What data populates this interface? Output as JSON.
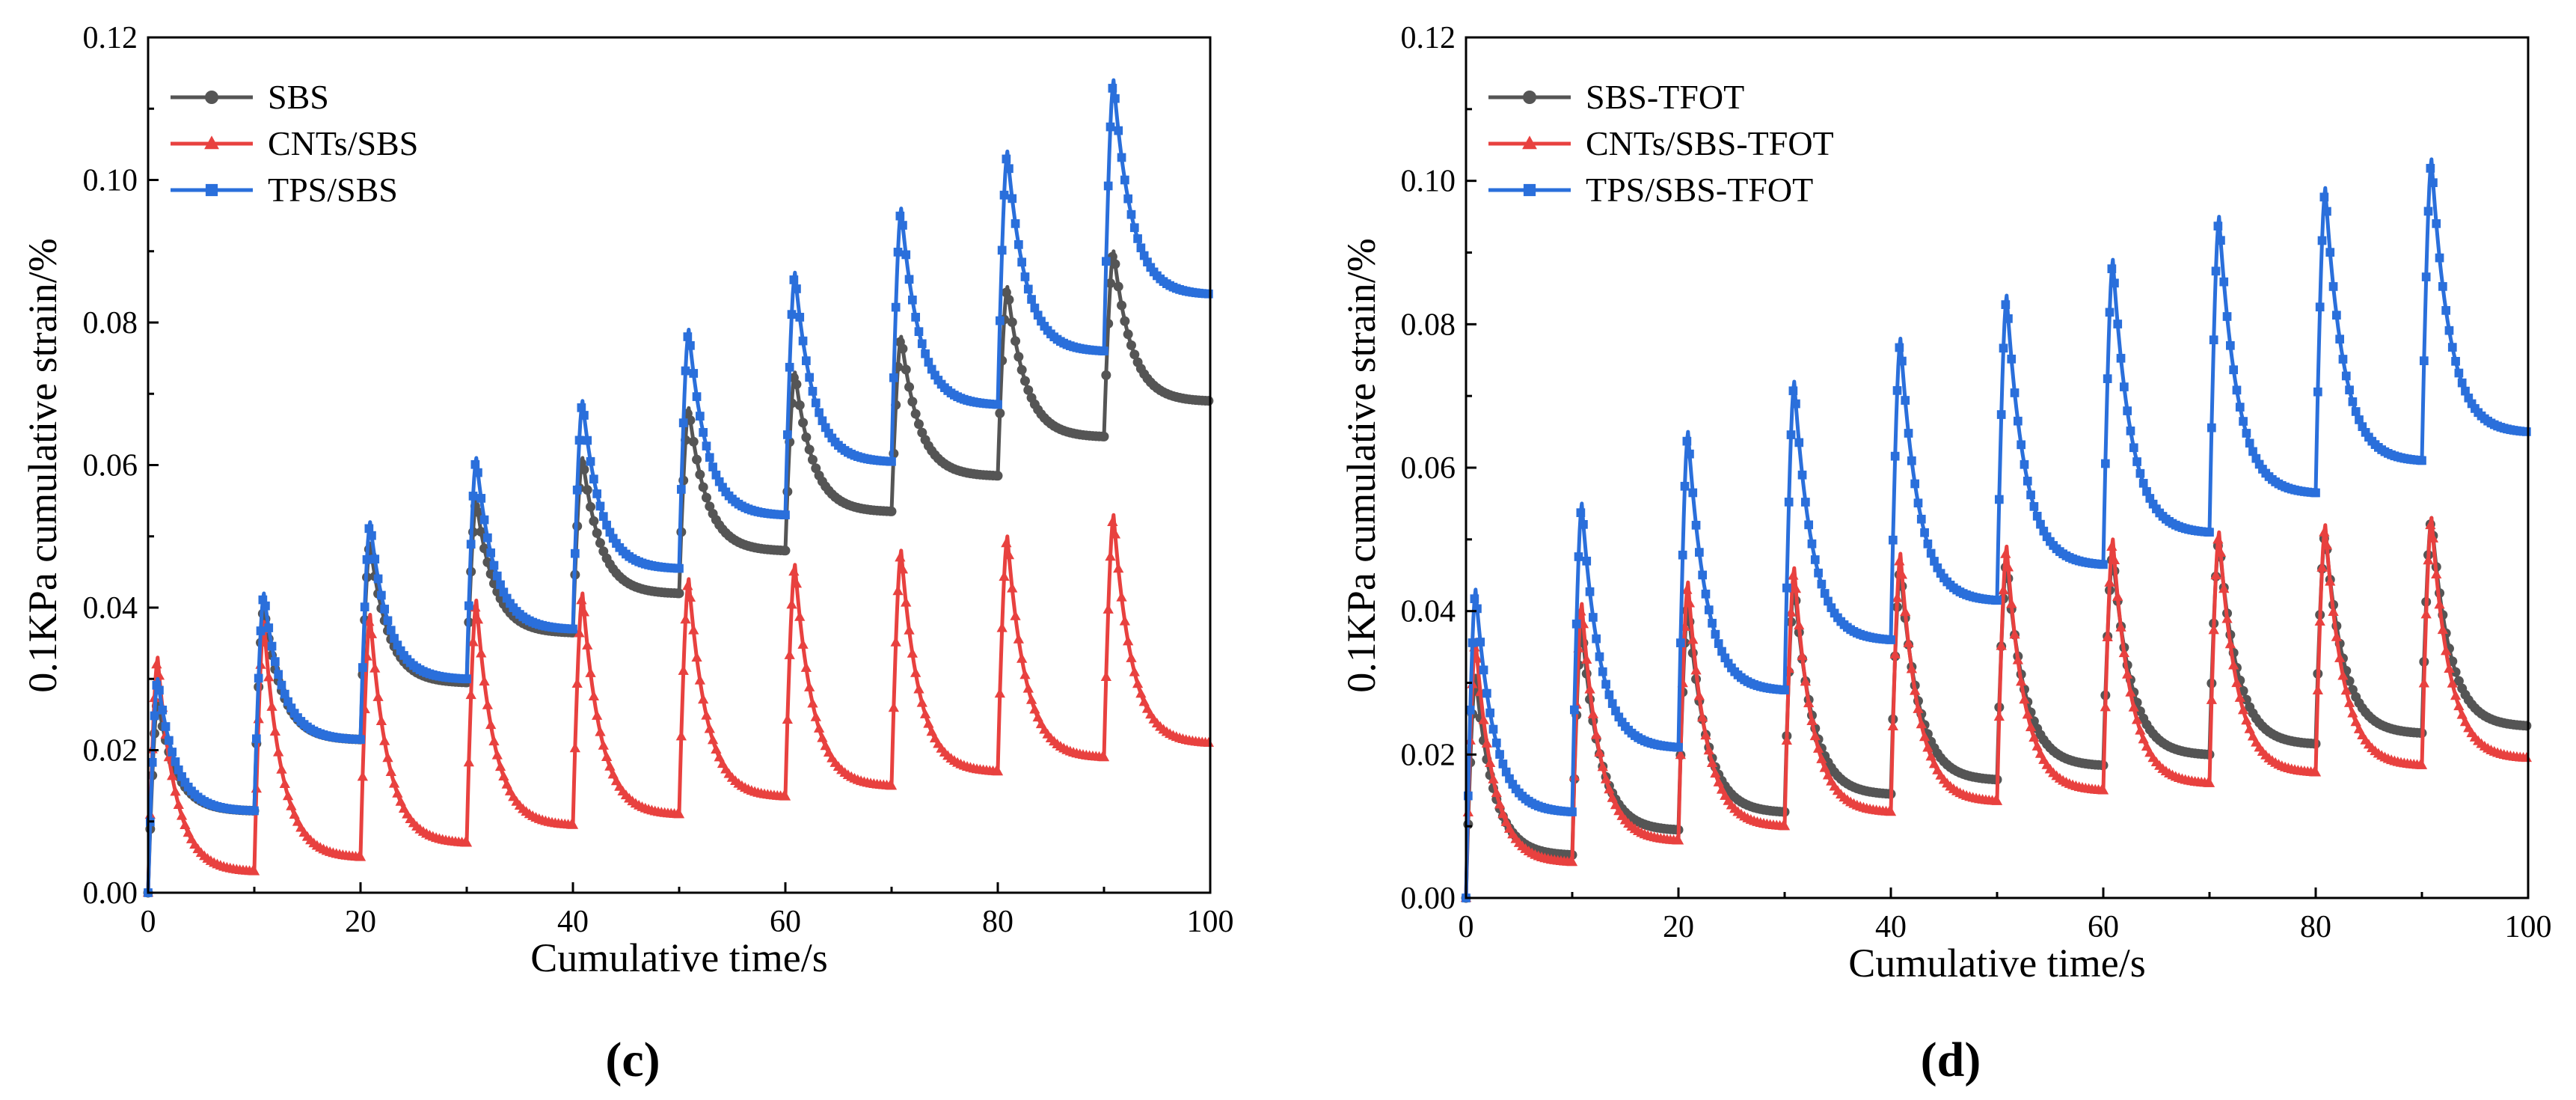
{
  "figure_labels": [
    "(c)",
    "(d)"
  ],
  "chart_data": [
    {
      "type": "line",
      "panel": "(c)",
      "title": "",
      "xlabel": "Cumulative time/s",
      "ylabel": "0.1KPa cumulative strain/%",
      "xlim": [
        0,
        100
      ],
      "ylim": [
        0,
        0.12
      ],
      "xticks": [
        "0",
        "20",
        "40",
        "60",
        "80",
        "100"
      ],
      "yticks": [
        "0.00",
        "0.02",
        "0.04",
        "0.06",
        "0.08",
        "0.10",
        "0.12"
      ],
      "grid": false,
      "legend_position": "top-left",
      "cycle_period_s": 10,
      "cycle_start_offset_s": 0.9,
      "series": [
        {
          "name": "SBS",
          "color": "#555555",
          "marker": "circle",
          "peaks": [
            0.027,
            0.04,
            0.049,
            0.055,
            0.061,
            0.068,
            0.073,
            0.078,
            0.085,
            0.09
          ],
          "troughs": [
            0.0115,
            0.0215,
            0.0295,
            0.0365,
            0.042,
            0.048,
            0.0535,
            0.0585,
            0.064,
            0.069
          ]
        },
        {
          "name": "CNTs/SBS",
          "color": "#e8413f",
          "marker": "triangle",
          "peaks": [
            0.033,
            0.038,
            0.039,
            0.041,
            0.042,
            0.044,
            0.046,
            0.048,
            0.05,
            0.053
          ],
          "troughs": [
            0.003,
            0.005,
            0.007,
            0.0095,
            0.011,
            0.0135,
            0.015,
            0.017,
            0.019,
            0.021
          ]
        },
        {
          "name": "TPS/SBS",
          "color": "#2a6fdb",
          "marker": "square",
          "peaks": [
            0.03,
            0.042,
            0.052,
            0.061,
            0.069,
            0.079,
            0.087,
            0.096,
            0.104,
            0.114
          ],
          "troughs": [
            0.0115,
            0.0215,
            0.03,
            0.037,
            0.0455,
            0.053,
            0.0605,
            0.0685,
            0.076,
            0.084
          ]
        }
      ]
    },
    {
      "type": "line",
      "panel": "(d)",
      "title": "",
      "xlabel": "Cumulative time/s",
      "ylabel": "0.1KPa cumulative strain/%",
      "xlim": [
        0,
        100
      ],
      "ylim": [
        0,
        0.12
      ],
      "xticks": [
        "0",
        "20",
        "40",
        "60",
        "80",
        "100"
      ],
      "yticks": [
        "0.00",
        "0.02",
        "0.04",
        "0.06",
        "0.08",
        "0.10",
        "0.12"
      ],
      "grid": false,
      "legend_position": "top-left",
      "cycle_period_s": 10,
      "cycle_start_offset_s": 0.9,
      "series": [
        {
          "name": "SBS-TFOT",
          "color": "#555555",
          "marker": "circle",
          "peaks": [
            0.031,
            0.038,
            0.041,
            0.044,
            0.046,
            0.047,
            0.048,
            0.05,
            0.051,
            0.053
          ],
          "troughs": [
            0.006,
            0.0095,
            0.012,
            0.0145,
            0.0165,
            0.0185,
            0.02,
            0.0215,
            0.023,
            0.024
          ]
        },
        {
          "name": "CNTs/SBS-TFOT",
          "color": "#e8413f",
          "marker": "triangle",
          "peaks": [
            0.036,
            0.041,
            0.044,
            0.046,
            0.048,
            0.049,
            0.05,
            0.051,
            0.052,
            0.053
          ],
          "troughs": [
            0.005,
            0.008,
            0.01,
            0.012,
            0.0135,
            0.015,
            0.016,
            0.0175,
            0.0185,
            0.0195
          ]
        },
        {
          "name": "TPS/SBS-TFOT",
          "color": "#2a6fdb",
          "marker": "square",
          "peaks": [
            0.043,
            0.055,
            0.065,
            0.072,
            0.078,
            0.084,
            0.089,
            0.095,
            0.099,
            0.103
          ],
          "troughs": [
            0.012,
            0.021,
            0.029,
            0.036,
            0.0415,
            0.0465,
            0.051,
            0.0565,
            0.061,
            0.065
          ]
        }
      ]
    }
  ]
}
